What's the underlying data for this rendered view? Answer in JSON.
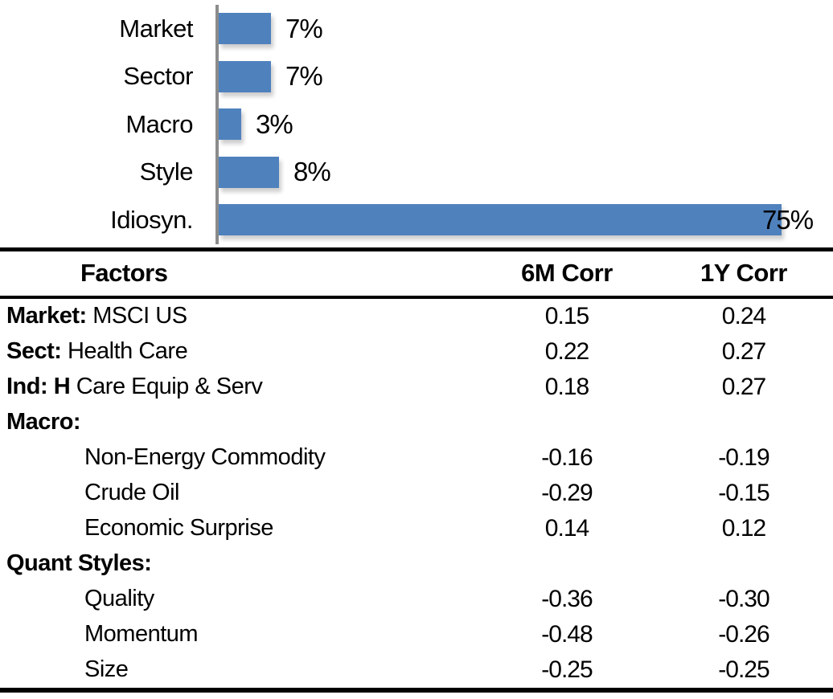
{
  "chart_data": [
    {
      "type": "bar",
      "orientation": "horizontal",
      "title": "",
      "xlabel": "",
      "ylabel": "",
      "categories": [
        "Market",
        "Sector",
        "Macro",
        "Style",
        "Idiosyn."
      ],
      "values": [
        7,
        7,
        3,
        8,
        75
      ],
      "value_labels": [
        "7%",
        "7%",
        "3%",
        "8%",
        "75%"
      ],
      "data_labels": true,
      "grid": false,
      "legend": false,
      "xlim": [
        0,
        80
      ],
      "bar_color": "#4F81BD",
      "axis_color": "#8C8C8C"
    },
    {
      "type": "table",
      "columns": [
        "Factors",
        "6M Corr",
        "1Y Corr"
      ],
      "rows": [
        {
          "label_bold": "Market:",
          "label": " MSCI US",
          "indent": false,
          "corr_6m": "0.15",
          "corr_1y": "0.24"
        },
        {
          "label_bold": "Sect:",
          "label": " Health Care",
          "indent": false,
          "corr_6m": "0.22",
          "corr_1y": "0.27"
        },
        {
          "label_bold": "Ind: H",
          "label": " Care Equip & Serv",
          "indent": false,
          "corr_6m": "0.18",
          "corr_1y": "0.27"
        },
        {
          "label_bold": "Macro:",
          "label": "",
          "indent": false,
          "corr_6m": "",
          "corr_1y": ""
        },
        {
          "label_bold": "",
          "label": "Non-Energy Commodity",
          "indent": true,
          "corr_6m": "-0.16",
          "corr_1y": "-0.19"
        },
        {
          "label_bold": "",
          "label": "Crude Oil",
          "indent": true,
          "corr_6m": "-0.29",
          "corr_1y": "-0.15"
        },
        {
          "label_bold": "",
          "label": "Economic Surprise",
          "indent": true,
          "corr_6m": "0.14",
          "corr_1y": "0.12"
        },
        {
          "label_bold": "Quant Styles:",
          "label": "",
          "indent": false,
          "corr_6m": "",
          "corr_1y": ""
        },
        {
          "label_bold": "",
          "label": "Quality",
          "indent": true,
          "corr_6m": "-0.36",
          "corr_1y": "-0.30"
        },
        {
          "label_bold": "",
          "label": "Momentum",
          "indent": true,
          "corr_6m": "-0.48",
          "corr_1y": "-0.26"
        },
        {
          "label_bold": "",
          "label": "Size",
          "indent": true,
          "corr_6m": "-0.25",
          "corr_1y": "-0.25"
        }
      ]
    }
  ]
}
